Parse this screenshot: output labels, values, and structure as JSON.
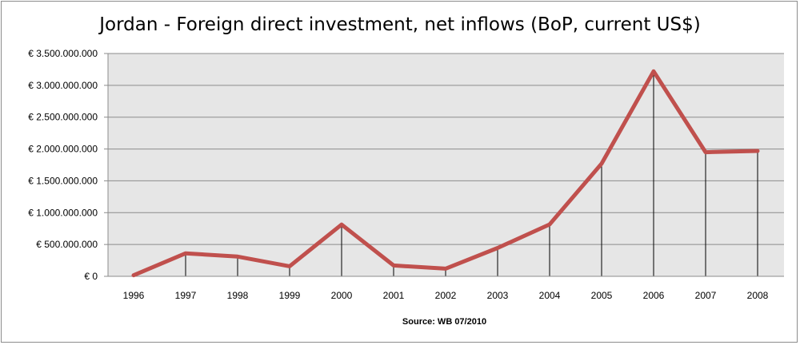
{
  "chart_data": {
    "type": "line",
    "title": "Jordan - Foreign direct investment, net inflows (BoP, current US$)",
    "source": "Source: WB 07/2010",
    "x": [
      "1996",
      "1997",
      "1998",
      "1999",
      "2000",
      "2001",
      "2002",
      "2003",
      "2004",
      "2005",
      "2006",
      "2007",
      "2008"
    ],
    "y": [
      16000000,
      361000000,
      310000000,
      158000000,
      813000000,
      170000000,
      120000000,
      445000000,
      815000000,
      1770000000,
      3220000000,
      1950000000,
      1970000000
    ],
    "yticks": [
      0,
      500000000,
      1000000000,
      1500000000,
      2000000000,
      2500000000,
      3000000000,
      3500000000
    ],
    "ytick_labels": [
      "€ 0",
      "€ 500.000.000",
      "€ 1.000.000.000",
      "€ 1.500.000.000",
      "€ 2.000.000.000",
      "€ 2.500.000.000",
      "€ 3.000.000.000",
      "€ 3.500.000.000"
    ],
    "ylim": [
      0,
      3500000000
    ],
    "grid": true,
    "drop_lines": true,
    "colors": {
      "line": "#c0504d",
      "plot_bg": "#e6e6e6",
      "grid": "#8c8c8c",
      "drop_line": "#000000"
    }
  }
}
